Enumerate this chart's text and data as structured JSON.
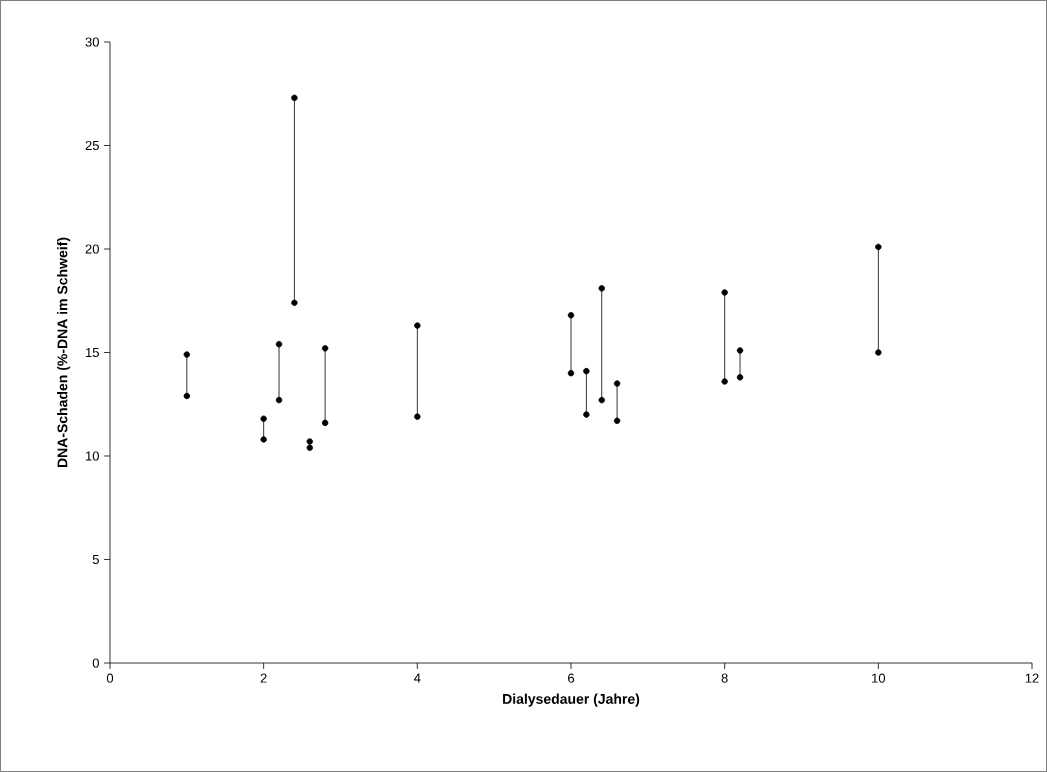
{
  "chart_data": {
    "type": "line",
    "xlabel": "Dialysedauer (Jahre)",
    "ylabel": "DNA-Schaden (%-DNA im Schweif)",
    "xlim": [
      0,
      12
    ],
    "xticks": [
      0,
      2,
      4,
      6,
      8,
      10,
      12
    ],
    "ylim": [
      0,
      30
    ],
    "yticks": [
      0,
      5,
      10,
      15,
      20,
      25,
      30
    ],
    "grid": false,
    "marker": "circle",
    "line_style": "solid",
    "series": [
      {
        "color": "#000000",
        "x": [
          1,
          1
        ],
        "values": [
          14.9,
          12.9
        ]
      },
      {
        "color": "#000000",
        "x": [
          2,
          2
        ],
        "values": [
          11.8,
          10.8
        ]
      },
      {
        "color": "#000000",
        "x": [
          2.2,
          2.2
        ],
        "values": [
          15.4,
          12.7
        ]
      },
      {
        "color": "#000000",
        "x": [
          2.4,
          2.4
        ],
        "values": [
          27.3,
          17.4
        ]
      },
      {
        "color": "#000000",
        "x": [
          2.6,
          2.6
        ],
        "values": [
          10.7,
          10.4
        ]
      },
      {
        "color": "#000000",
        "x": [
          2.8,
          2.8
        ],
        "values": [
          15.2,
          11.6
        ]
      },
      {
        "color": "#000000",
        "x": [
          4,
          4
        ],
        "values": [
          16.3,
          11.9
        ]
      },
      {
        "color": "#000000",
        "x": [
          6,
          6
        ],
        "values": [
          16.8,
          14.0
        ]
      },
      {
        "color": "#000000",
        "x": [
          6.2,
          6.2
        ],
        "values": [
          14.1,
          12.0
        ]
      },
      {
        "color": "#000000",
        "x": [
          6.4,
          6.4
        ],
        "values": [
          18.1,
          12.7
        ]
      },
      {
        "color": "#000000",
        "x": [
          6.6,
          6.6
        ],
        "values": [
          13.5,
          11.7
        ]
      },
      {
        "color": "#000000",
        "x": [
          8,
          8
        ],
        "values": [
          17.9,
          13.6
        ]
      },
      {
        "color": "#000000",
        "x": [
          8.2,
          8.2
        ],
        "values": [
          15.1,
          13.8
        ]
      },
      {
        "color": "#000000",
        "x": [
          10,
          10
        ],
        "values": [
          20.1,
          15.0
        ]
      }
    ]
  }
}
